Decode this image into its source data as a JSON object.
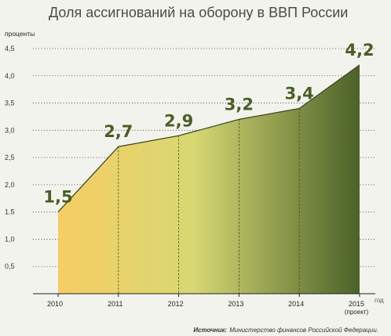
{
  "chart_data": {
    "type": "area",
    "title": "Доля ассигнований на оборону в ВВП России",
    "ylabel": "проценты",
    "xlabel": "год",
    "categories": [
      "2010",
      "2011",
      "2012",
      "2013",
      "2014",
      "2015"
    ],
    "category_notes": [
      "",
      "",
      "",
      "",
      "",
      "(проект)"
    ],
    "values": [
      1.5,
      2.7,
      2.9,
      3.2,
      3.4,
      4.2
    ],
    "data_labels": [
      "1,5",
      "2,7",
      "2,9",
      "3,2",
      "3,4",
      "4,2"
    ],
    "ylim": [
      0,
      4.5
    ],
    "yticks": [
      0.5,
      1.0,
      1.5,
      2.0,
      2.5,
      3.0,
      3.5,
      4.0,
      4.5
    ],
    "ytick_labels": [
      "0,5",
      "1,0",
      "1.5",
      "2,0",
      "2,5",
      "3,0",
      "3,5",
      "4,0",
      "4,5"
    ],
    "grid": true,
    "colors": {
      "gradient_start": "#f6cd63",
      "gradient_mid": "#d7d873",
      "gradient_end": "#4b6129",
      "label": "#4a5e26"
    },
    "source": {
      "label": "Источник:",
      "text": "Министерство финансов Российской Федерации."
    }
  }
}
